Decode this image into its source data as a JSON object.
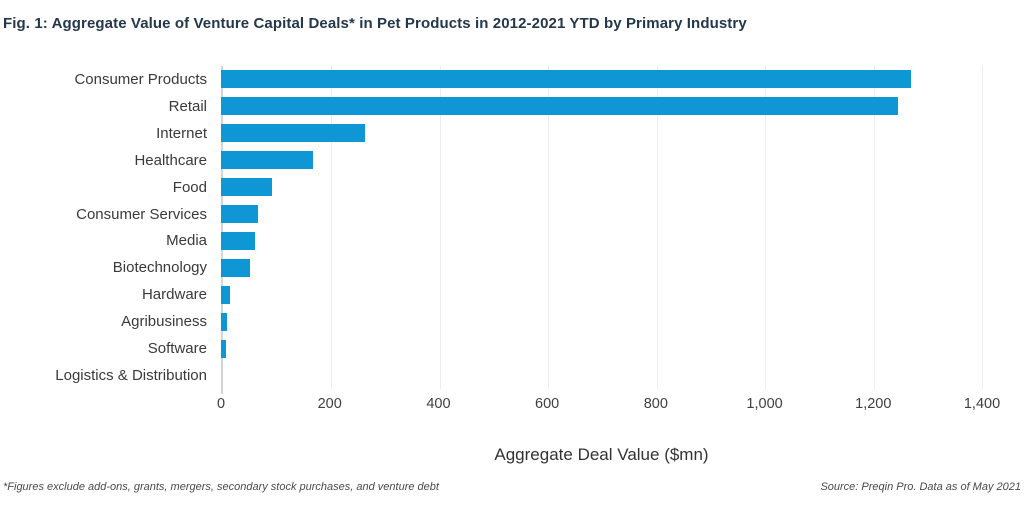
{
  "chart_data": {
    "type": "bar",
    "orientation": "horizontal",
    "title": "Fig. 1: Aggregate Value of Venture Capital Deals* in Pet Products in 2012-2021 YTD by Primary Industry",
    "categories": [
      "Consumer Products",
      "Retail",
      "Internet",
      "Healthcare",
      "Food",
      "Consumer Services",
      "Media",
      "Biotechnology",
      "Hardware",
      "Agribusiness",
      "Software",
      "Logistics & Distribution"
    ],
    "values": [
      1270,
      1245,
      265,
      170,
      93,
      68,
      63,
      53,
      16,
      11,
      9,
      0
    ],
    "xlabel": "Aggregate Deal Value ($mn)",
    "xlim": [
      0,
      1400
    ],
    "xtick_interval": 200,
    "xtick_labels": [
      "0",
      "200",
      "400",
      "600",
      "800",
      "1,000",
      "1,200",
      "1,400"
    ],
    "grid": "vertical-faint",
    "legend": "none",
    "bar_color": "#0e96d5",
    "title_color": "#24384a",
    "footnote_left": "*Figures exclude add-ons, grants, mergers, secondary stock purchases, and venture debt",
    "footnote_right": "Source: Preqin Pro. Data as of May 2021"
  }
}
